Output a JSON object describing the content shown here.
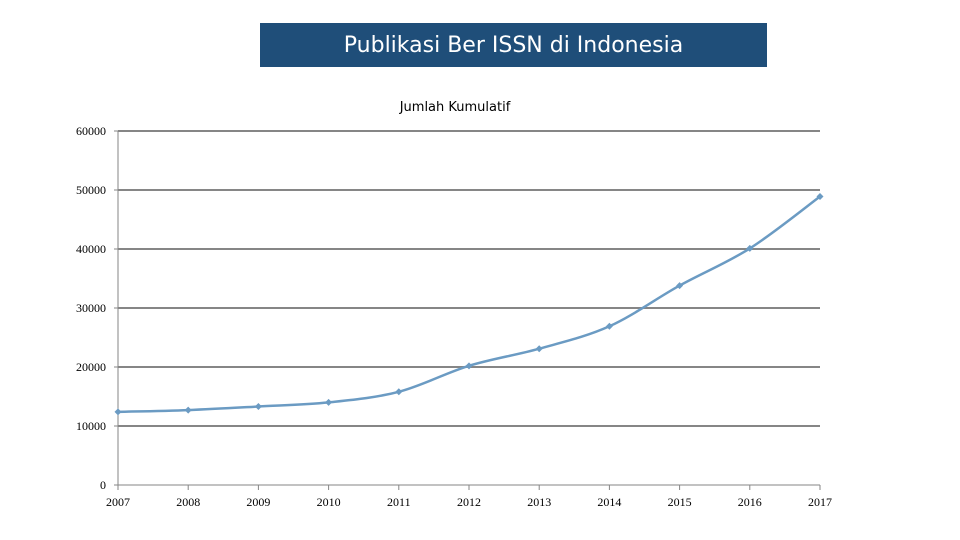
{
  "banner": {
    "title": "Publikasi Ber ISSN di Indonesia"
  },
  "chart_data": {
    "type": "line",
    "title": "Jumlah Kumulatif",
    "xlabel": "",
    "ylabel": "",
    "x": [
      2007,
      2008,
      2009,
      2010,
      2011,
      2012,
      2013,
      2014,
      2015,
      2016,
      2017
    ],
    "series": [
      {
        "values": [
          12400,
          12700,
          13300,
          14000,
          15800,
          20200,
          23100,
          26900,
          33800,
          40100,
          48900
        ]
      }
    ],
    "ylim": [
      0,
      60000
    ],
    "yticks": [
      0,
      10000,
      20000,
      30000,
      40000,
      50000,
      60000
    ],
    "grid": true,
    "smooth": true,
    "line_color": "#6b9bc3",
    "grid_color": "#868686"
  }
}
